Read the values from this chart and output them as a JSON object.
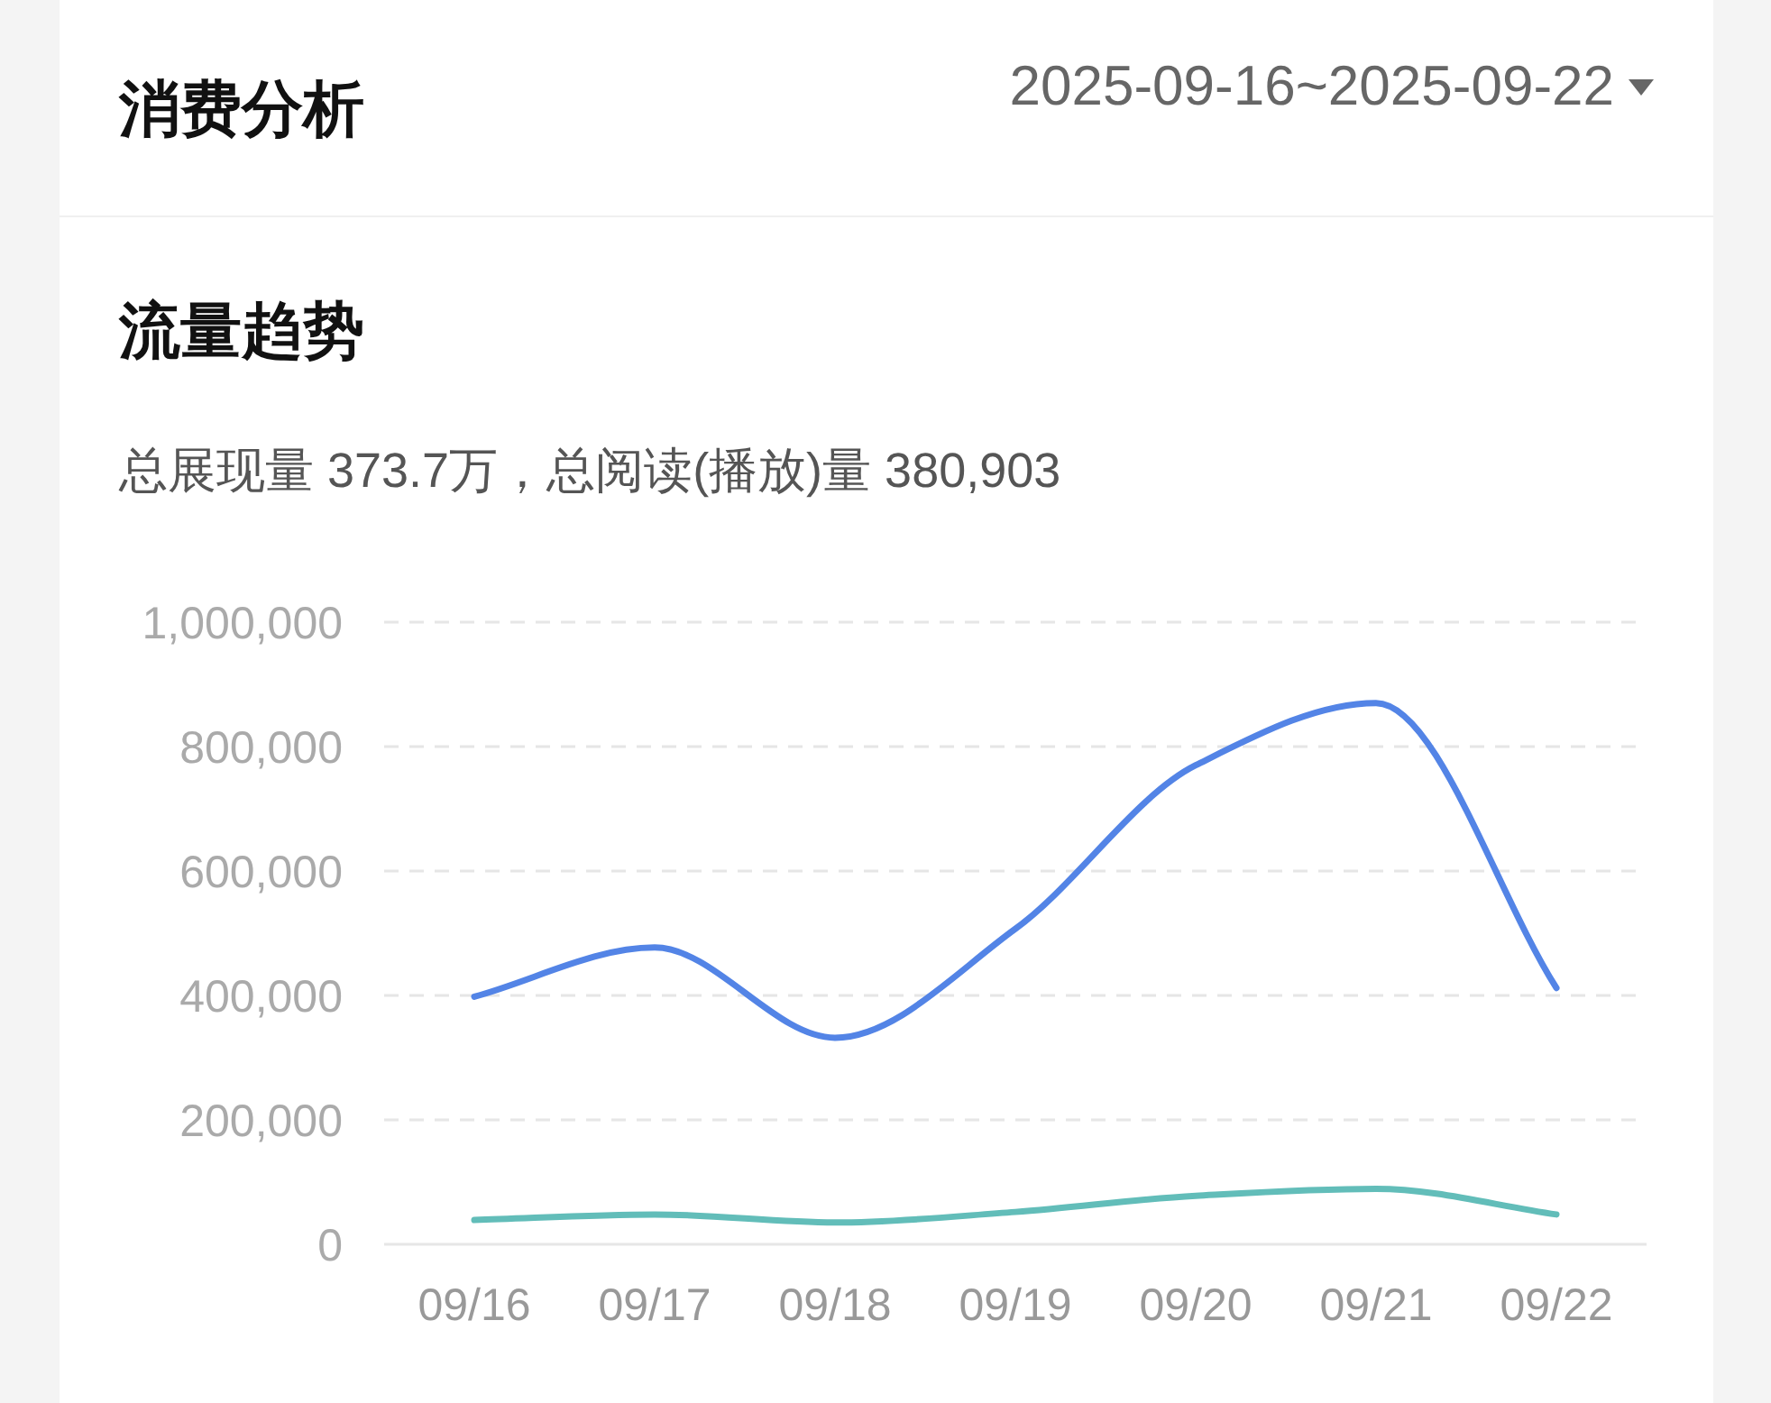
{
  "chart_data": {
    "type": "line",
    "title": "消费分析",
    "subtitle": "流量趋势",
    "annotations": [
      "2025-09-16~2025-09-22",
      "总展现量 373.7万，总阅读(播放)量 380,903"
    ],
    "categories": [
      "09/16",
      "09/17",
      "09/18",
      "09/19",
      "09/20",
      "09/21",
      "09/22"
    ],
    "series": [
      {
        "color": "#5384e6",
        "values": [
          398000,
          477000,
          332000,
          507000,
          770000,
          870000,
          412000
        ]
      },
      {
        "color": "#62bdb9",
        "values": [
          39000,
          48000,
          35000,
          52000,
          78000,
          89000,
          48000
        ]
      }
    ],
    "ylim": [
      0,
      1000000
    ],
    "yticks": [
      {
        "value": 0,
        "label": "0"
      },
      {
        "value": 200000,
        "label": "200,000"
      },
      {
        "value": 400000,
        "label": "400,000"
      },
      {
        "value": 600000,
        "label": "600,000"
      },
      {
        "value": 800000,
        "label": "800,000"
      },
      {
        "value": 1000000,
        "label": "1,000,000"
      }
    ],
    "grid": "y",
    "marker": "none",
    "line_style": "solid"
  }
}
